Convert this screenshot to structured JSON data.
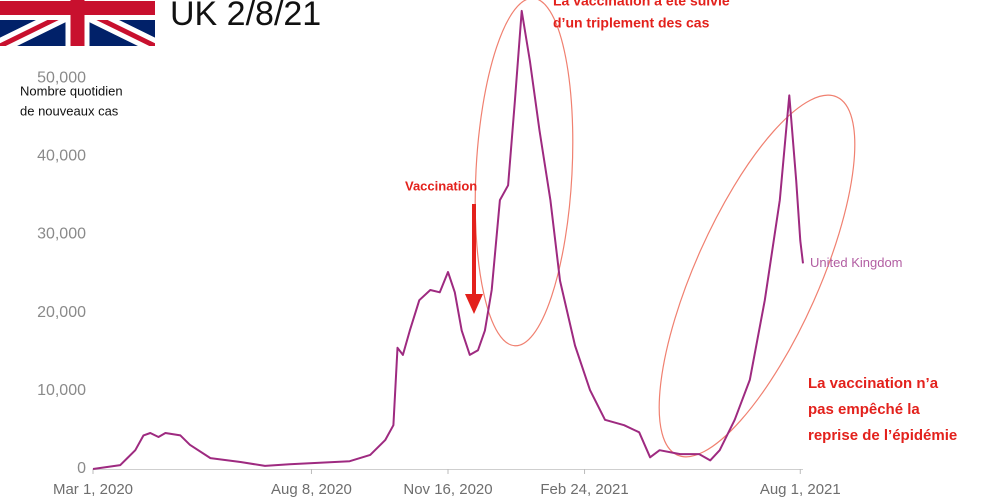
{
  "chart_data": {
    "type": "line",
    "title": "UK 2/8/21",
    "y_label": [
      "Nombre quotidien",
      "de nouveaux cas"
    ],
    "x": [
      "2020-03-01",
      "2020-03-21",
      "2020-04-01",
      "2020-04-07",
      "2020-04-12",
      "2020-04-18",
      "2020-04-23",
      "2020-05-04",
      "2020-05-11",
      "2020-05-26",
      "2020-06-17",
      "2020-07-05",
      "2020-07-23",
      "2020-08-14",
      "2020-09-05",
      "2020-09-20",
      "2020-10-01",
      "2020-10-07",
      "2020-10-10",
      "2020-10-14",
      "2020-10-19",
      "2020-10-26",
      "2020-11-03",
      "2020-11-10",
      "2020-11-16",
      "2020-11-21",
      "2020-11-26",
      "2020-12-02",
      "2020-12-08",
      "2020-12-13",
      "2020-12-18",
      "2020-12-24",
      "2020-12-30",
      "2021-01-04",
      "2021-01-09",
      "2021-01-15",
      "2021-01-22",
      "2021-01-30",
      "2021-02-06",
      "2021-02-17",
      "2021-02-28",
      "2021-03-11",
      "2021-03-25",
      "2021-04-05",
      "2021-04-13",
      "2021-04-20",
      "2021-05-05",
      "2021-05-19",
      "2021-05-27",
      "2021-06-03",
      "2021-06-14",
      "2021-06-25",
      "2021-07-06",
      "2021-07-17",
      "2021-07-24",
      "2021-07-29",
      "2021-08-01",
      "2021-08-03"
    ],
    "series": [
      {
        "name": "United Kingdom",
        "color": "#9e2a80",
        "values": [
          0,
          500,
          2400,
          4300,
          4600,
          4100,
          4600,
          4300,
          3100,
          1400,
          900,
          400,
          600,
          800,
          1000,
          1800,
          3700,
          5600,
          15500,
          14600,
          17700,
          21600,
          22900,
          22600,
          25200,
          22600,
          17700,
          14600,
          15200,
          17700,
          22900,
          34400,
          36300,
          47100,
          58600,
          52200,
          43300,
          34400,
          24100,
          15800,
          10100,
          6300,
          5600,
          4700,
          1500,
          2400,
          1900,
          1900,
          1100,
          2400,
          6300,
          11400,
          21600,
          34400,
          47800,
          36900,
          29200,
          26300
        ]
      }
    ],
    "xlim": [
      "2020-03-01",
      "2021-08-03"
    ],
    "xticks": [
      {
        "value": "2020-03-01",
        "label": "Mar 1, 2020"
      },
      {
        "value": "2020-08-08",
        "label": "Aug 8, 2020"
      },
      {
        "value": "2020-11-16",
        "label": "Nov 16, 2020"
      },
      {
        "value": "2021-02-24",
        "label": "Feb 24, 2021"
      },
      {
        "value": "2021-08-01",
        "label": "Aug 1, 2021"
      }
    ],
    "ylim": [
      0,
      60000
    ],
    "yticks": [
      0,
      {
        "value": 10000,
        "label": "10,000"
      },
      {
        "value": 20000,
        "label": "20,000"
      },
      {
        "value": 30000,
        "label": "30,000"
      },
      {
        "value": 40000,
        "label": "40,000"
      },
      {
        "value": 50000,
        "label": "50,000"
      }
    ],
    "grid": false,
    "annotations": [
      {
        "lines": [
          "La vaccination a été suivie",
          "d’un triplement des cas"
        ]
      },
      {
        "lines": [
          "Vaccination"
        ]
      },
      {
        "lines": [
          "La vaccination n’a",
          "pas empêché la",
          "reprise de l’épidémie"
        ]
      }
    ]
  }
}
